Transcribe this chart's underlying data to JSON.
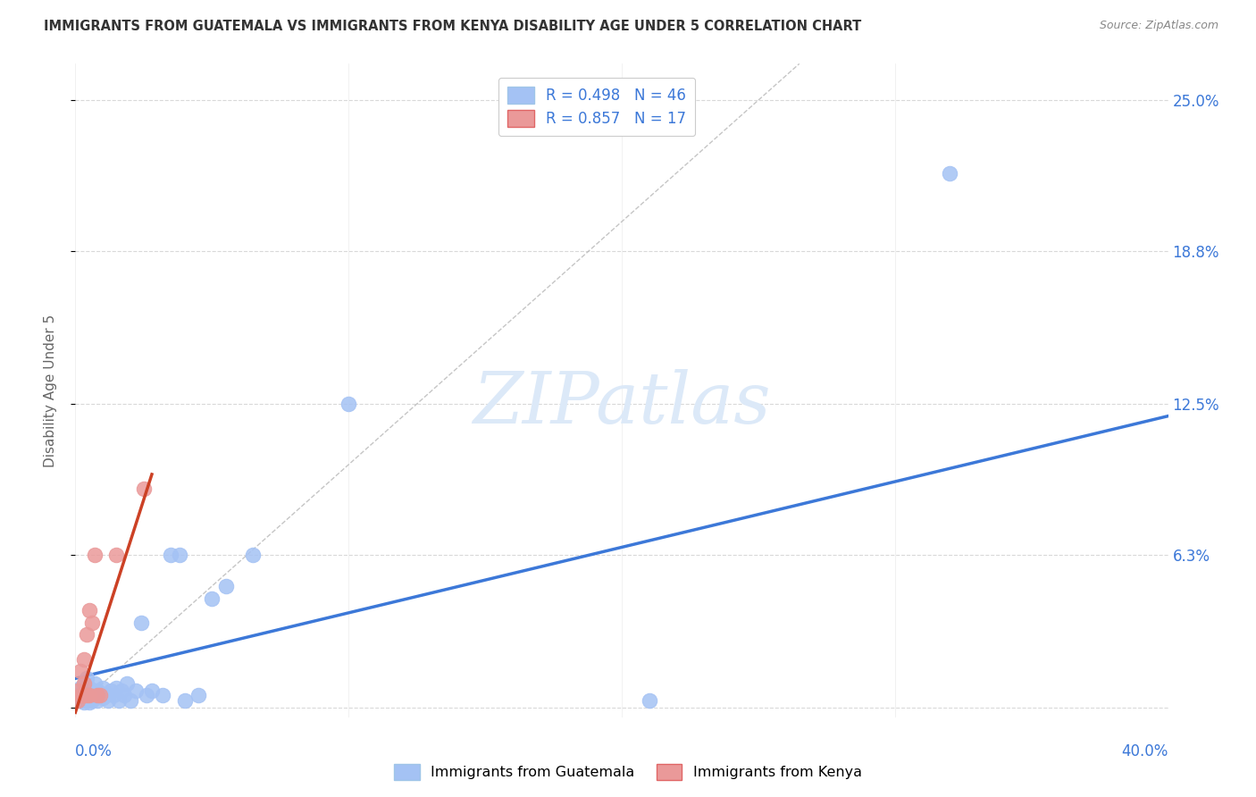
{
  "title": "IMMIGRANTS FROM GUATEMALA VS IMMIGRANTS FROM KENYA DISABILITY AGE UNDER 5 CORRELATION CHART",
  "source": "Source: ZipAtlas.com",
  "ylabel": "Disability Age Under 5",
  "watermark": "ZIPatlas",
  "legend1_label": "R = 0.498   N = 46",
  "legend2_label": "R = 0.857   N = 17",
  "legend_bottom_label1": "Immigrants from Guatemala",
  "legend_bottom_label2": "Immigrants from Kenya",
  "blue_color": "#a4c2f4",
  "pink_color": "#ea9999",
  "blue_line_color": "#3c78d8",
  "pink_line_color": "#cc4125",
  "diagonal_color": "#b7b7b7",
  "ytick_vals": [
    0.0,
    0.063,
    0.125,
    0.188,
    0.25
  ],
  "ytick_labels": [
    "",
    "6.3%",
    "12.5%",
    "18.8%",
    "25.0%"
  ],
  "xlim": [
    0.0,
    0.4
  ],
  "ylim": [
    -0.004,
    0.265
  ],
  "guatemala_x": [
    0.001,
    0.002,
    0.002,
    0.003,
    0.003,
    0.003,
    0.004,
    0.004,
    0.004,
    0.005,
    0.005,
    0.005,
    0.006,
    0.006,
    0.007,
    0.007,
    0.008,
    0.008,
    0.009,
    0.01,
    0.01,
    0.011,
    0.012,
    0.013,
    0.014,
    0.015,
    0.016,
    0.017,
    0.018,
    0.019,
    0.02,
    0.022,
    0.024,
    0.026,
    0.028,
    0.032,
    0.035,
    0.038,
    0.04,
    0.045,
    0.05,
    0.055,
    0.065,
    0.1,
    0.21,
    0.32
  ],
  "guatemala_y": [
    0.005,
    0.003,
    0.008,
    0.002,
    0.005,
    0.01,
    0.003,
    0.007,
    0.012,
    0.002,
    0.005,
    0.008,
    0.003,
    0.007,
    0.005,
    0.01,
    0.003,
    0.007,
    0.005,
    0.004,
    0.008,
    0.005,
    0.003,
    0.007,
    0.005,
    0.008,
    0.003,
    0.007,
    0.005,
    0.01,
    0.003,
    0.007,
    0.035,
    0.005,
    0.007,
    0.005,
    0.063,
    0.063,
    0.003,
    0.005,
    0.045,
    0.05,
    0.063,
    0.125,
    0.003,
    0.22
  ],
  "kenya_x": [
    0.001,
    0.001,
    0.002,
    0.002,
    0.003,
    0.003,
    0.003,
    0.004,
    0.004,
    0.005,
    0.005,
    0.006,
    0.007,
    0.008,
    0.009,
    0.015,
    0.025
  ],
  "kenya_y": [
    0.003,
    0.007,
    0.005,
    0.015,
    0.005,
    0.01,
    0.02,
    0.005,
    0.03,
    0.005,
    0.04,
    0.035,
    0.063,
    0.005,
    0.005,
    0.063,
    0.09
  ],
  "blue_slope": 0.27,
  "blue_intercept": 0.012,
  "pink_slope": 3.5,
  "pink_intercept": -0.002
}
